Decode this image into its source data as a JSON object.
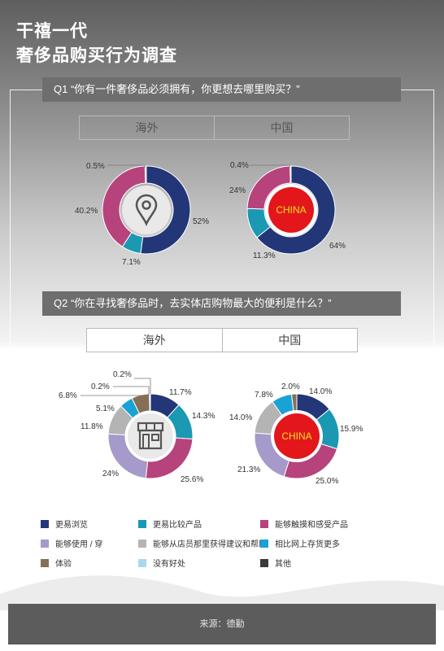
{
  "header": {
    "title_line1": "干禧一代",
    "title_line2": "奢侈品购买行为调查"
  },
  "q1": {
    "question": "Q1  “你有一件奢侈品必须拥有，你更想去哪里购买？”",
    "tabs": [
      "海外",
      "中国"
    ]
  },
  "q2": {
    "question": "Q2  “你在寻找奢侈品时，去实体店购物最大的便利是什么？”",
    "tabs": [
      "海外",
      "中国"
    ]
  },
  "center_labels": {
    "china": "CHINA"
  },
  "colors": {
    "navy": "#223678",
    "teal": "#1b98b2",
    "magenta": "#b7437c",
    "lavender": "#a59ac9",
    "gray": "#b4b4b4",
    "cyan": "#1aa2d4",
    "brown": "#866f57",
    "lightblue": "#a9d8ee",
    "dark": "#3a3a3a",
    "red": "#e3161b"
  },
  "legend": [
    {
      "label": "更易浏览",
      "color": "#223678"
    },
    {
      "label": "更易比较产品",
      "color": "#1b98b2"
    },
    {
      "label": "能够触摸和感受产品",
      "color": "#b7437c"
    },
    {
      "label": "能够使用 / 穿",
      "color": "#a59ac9"
    },
    {
      "label": "能够从店员那里获得建议和帮助",
      "color": "#b4b4b4"
    },
    {
      "label": "相比网上存货更多",
      "color": "#1aa2d4"
    },
    {
      "label": "体验",
      "color": "#866f57"
    },
    {
      "label": "没有好处",
      "color": "#a9d8ee"
    },
    {
      "label": "其他",
      "color": "#3a3a3a"
    }
  ],
  "footer": {
    "source": "来源：德勤"
  },
  "chart_data": [
    {
      "type": "pie",
      "title": "海外",
      "values": [
        52,
        7.1,
        40.2,
        0.5
      ],
      "colors": [
        "#223678",
        "#1b98b2",
        "#b7437c",
        "#b4b4b4"
      ],
      "labels": [
        "52%",
        "7.1%",
        "40.2%",
        "0.5%"
      ],
      "center": "location-pin"
    },
    {
      "type": "pie",
      "title": "中国",
      "values": [
        64,
        11.3,
        24,
        0.4
      ],
      "colors": [
        "#223678",
        "#1b98b2",
        "#b7437c",
        "#b4b4b4"
      ],
      "labels": [
        "64%",
        "11.3%",
        "24%",
        "0.4%"
      ],
      "center": "CHINA"
    },
    {
      "type": "pie",
      "title": "海外",
      "series": [
        {
          "name": "更易浏览",
          "value": 11.7,
          "label": "11.7%"
        },
        {
          "name": "更易比较产品",
          "value": 14.3,
          "label": "14.3%"
        },
        {
          "name": "能够触摸和感受产品",
          "value": 25.6,
          "label": "25.6%"
        },
        {
          "name": "能够使用 / 穿",
          "value": 24,
          "label": "24%"
        },
        {
          "name": "能够从店员那里获得建议和帮助",
          "value": 11.8,
          "label": "11.8%"
        },
        {
          "name": "相比网上存货更多",
          "value": 5.1,
          "label": "5.1%"
        },
        {
          "name": "体验",
          "value": 6.8,
          "label": "6.8%"
        },
        {
          "name": "没有好处",
          "value": 0.2,
          "label": "0.2%"
        },
        {
          "name": "其他",
          "value": 0.2,
          "label": "0.2%"
        }
      ],
      "center": "storefront"
    },
    {
      "type": "pie",
      "title": "中国",
      "series": [
        {
          "name": "更易浏览",
          "value": 14.0,
          "label": "14.0%"
        },
        {
          "name": "更易比较产品",
          "value": 15.9,
          "label": "15.9%"
        },
        {
          "name": "能够触摸和感受产品",
          "value": 25.0,
          "label": "25.0%"
        },
        {
          "name": "能够使用 / 穿",
          "value": 21.3,
          "label": "21.3%"
        },
        {
          "name": "能够从店员那里获得建议和帮助",
          "value": 14.0,
          "label": "14.0%"
        },
        {
          "name": "相比网上存货更多",
          "value": 7.8,
          "label": "7.8%"
        },
        {
          "name": "体验",
          "value": 2.0,
          "label": "2.0%"
        }
      ],
      "center": "CHINA"
    }
  ]
}
